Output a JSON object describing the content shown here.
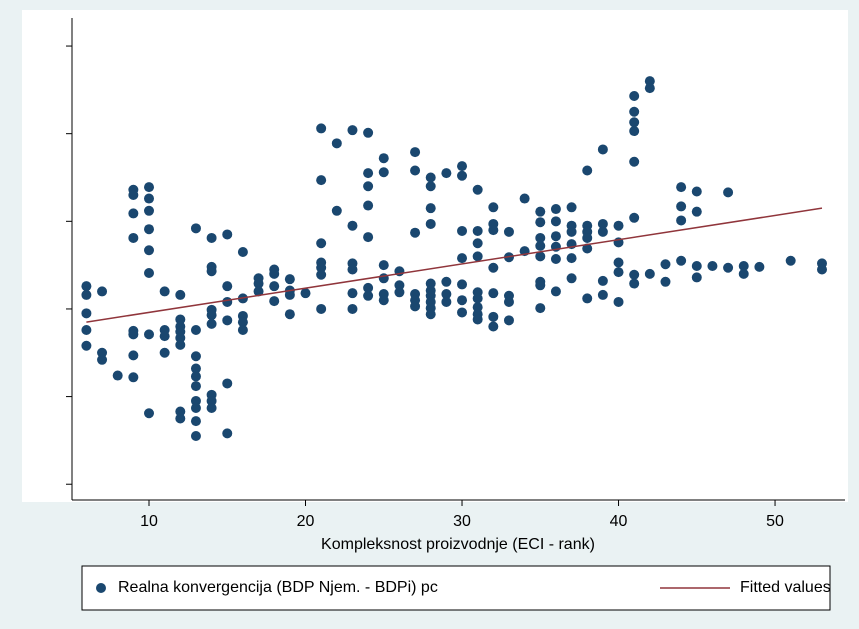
{
  "chart_data": {
    "type": "scatter",
    "x_label": "Kompleksnost proizvodnje (ECI - rank)",
    "xlim": [
      5.08,
      54.47
    ],
    "xticks": [
      10,
      20,
      30,
      40,
      50
    ],
    "ylim": [
      -0.18,
      5.32
    ],
    "yticks": [
      0,
      1,
      2,
      3,
      4,
      5
    ],
    "legend": "bottom",
    "series": [
      {
        "name": "Realna konvergencija (BDP Njem. - BDPi) pc",
        "type": "scatter",
        "color": "#1a476f",
        "x": [
          6,
          6,
          6,
          6,
          6,
          7,
          7,
          7,
          8,
          9,
          9,
          9,
          9,
          9,
          9,
          9,
          9,
          10,
          10,
          10,
          10,
          10,
          10,
          10,
          10,
          11,
          11,
          11,
          11,
          12,
          12,
          12,
          12,
          12,
          12,
          12,
          12,
          13,
          13,
          13,
          13,
          13,
          13,
          13,
          13,
          13,
          13,
          14,
          14,
          14,
          14,
          14,
          14,
          14,
          14,
          14,
          15,
          15,
          15,
          15,
          15,
          15,
          16,
          16,
          16,
          16,
          16,
          17,
          17,
          17,
          18,
          18,
          18,
          18,
          19,
          19,
          19,
          19,
          20,
          21,
          21,
          21,
          21,
          21,
          21,
          21,
          22,
          22,
          23,
          23,
          23,
          23,
          23,
          23,
          24,
          24,
          24,
          24,
          24,
          24,
          24,
          25,
          25,
          25,
          25,
          25,
          25,
          26,
          26,
          26,
          27,
          27,
          27,
          27,
          27,
          27,
          28,
          28,
          28,
          28,
          28,
          28,
          28,
          28,
          28,
          28,
          29,
          29,
          29,
          29,
          30,
          30,
          30,
          30,
          30,
          30,
          30,
          31,
          31,
          31,
          31,
          31,
          31,
          31,
          31,
          31,
          32,
          32,
          32,
          32,
          32,
          32,
          32,
          33,
          33,
          33,
          33,
          33,
          34,
          34,
          35,
          35,
          35,
          35,
          35,
          35,
          35,
          35,
          36,
          36,
          36,
          36,
          36,
          36,
          37,
          37,
          37,
          37,
          37,
          37,
          38,
          38,
          38,
          38,
          38,
          38,
          39,
          39,
          39,
          39,
          39,
          40,
          40,
          40,
          40,
          40,
          41,
          41,
          41,
          41,
          41,
          41,
          41,
          41,
          42,
          42,
          42,
          43,
          43,
          44,
          44,
          44,
          44,
          45,
          45,
          45,
          45,
          46,
          47,
          47,
          48,
          48,
          49,
          51,
          53,
          53
        ],
        "values": [
          2.26,
          2.16,
          1.95,
          1.76,
          1.58,
          2.2,
          1.5,
          1.42,
          1.24,
          3.36,
          3.3,
          3.09,
          2.81,
          1.75,
          1.71,
          1.47,
          1.22,
          3.39,
          3.26,
          3.12,
          2.91,
          2.67,
          2.41,
          1.71,
          0.81,
          2.2,
          1.76,
          1.69,
          1.5,
          2.16,
          1.88,
          1.8,
          1.74,
          1.67,
          1.59,
          0.83,
          0.75,
          2.92,
          1.76,
          1.46,
          1.32,
          1.23,
          1.12,
          0.95,
          0.87,
          0.72,
          0.55,
          2.81,
          2.48,
          2.43,
          1.99,
          1.93,
          1.83,
          1.02,
          0.95,
          0.87,
          2.85,
          2.26,
          2.08,
          1.87,
          1.15,
          0.58,
          2.65,
          2.12,
          1.92,
          1.85,
          1.76,
          2.35,
          2.29,
          2.2,
          2.45,
          2.4,
          2.26,
          2.09,
          2.34,
          2.21,
          2.16,
          1.94,
          2.18,
          4.06,
          3.47,
          2.75,
          2.53,
          2.47,
          2.39,
          2.0,
          3.89,
          3.12,
          4.04,
          2.95,
          2.52,
          2.45,
          2.18,
          2.0,
          4.01,
          3.55,
          3.4,
          3.18,
          2.82,
          2.24,
          2.15,
          3.72,
          3.56,
          2.5,
          2.35,
          2.17,
          2.1,
          2.43,
          2.27,
          2.19,
          3.79,
          3.58,
          2.87,
          2.17,
          2.1,
          2.03,
          3.5,
          3.4,
          3.15,
          2.97,
          2.29,
          2.21,
          2.15,
          2.08,
          2.01,
          1.94,
          3.55,
          2.31,
          2.17,
          2.08,
          3.63,
          3.52,
          2.89,
          2.58,
          2.28,
          2.1,
          1.96,
          3.36,
          2.89,
          2.75,
          2.6,
          2.19,
          2.12,
          2.02,
          1.94,
          1.88,
          3.16,
          2.97,
          2.9,
          2.47,
          2.18,
          1.91,
          1.8,
          2.88,
          2.59,
          2.15,
          2.08,
          1.87,
          3.26,
          2.66,
          3.11,
          2.99,
          2.81,
          2.72,
          2.6,
          2.31,
          2.27,
          2.01,
          3.14,
          3.0,
          2.83,
          2.71,
          2.57,
          2.2,
          3.16,
          2.95,
          2.88,
          2.74,
          2.58,
          2.35,
          3.58,
          2.95,
          2.88,
          2.81,
          2.69,
          2.12,
          3.82,
          2.97,
          2.88,
          2.32,
          2.16,
          2.95,
          2.76,
          2.53,
          2.42,
          2.08,
          4.43,
          4.25,
          4.13,
          4.03,
          3.68,
          3.04,
          2.39,
          2.29,
          4.6,
          4.52,
          2.4,
          2.51,
          2.31,
          3.39,
          3.17,
          3.01,
          2.55,
          3.34,
          3.11,
          2.49,
          2.36,
          2.49,
          3.33,
          2.47,
          2.49,
          2.4,
          2.48,
          2.55,
          2.52,
          2.45
        ]
      },
      {
        "name": "Fitted values",
        "type": "line",
        "color": "#90353b",
        "x": [
          6,
          53
        ],
        "values": [
          1.85,
          3.15
        ]
      }
    ]
  }
}
